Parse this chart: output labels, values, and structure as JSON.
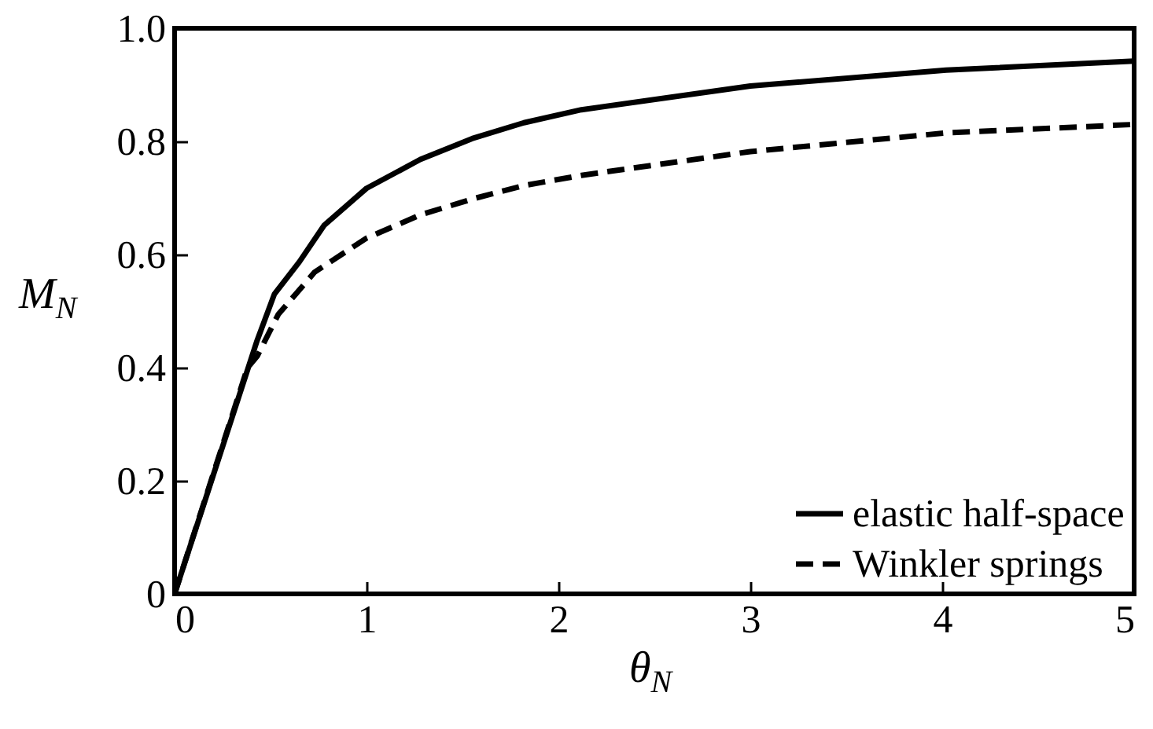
{
  "chart_data": {
    "type": "line",
    "xlabel": "θ$_{N}$",
    "ylabel": "M$_{N}$",
    "xlim": [
      0,
      5
    ],
    "ylim": [
      0,
      1
    ],
    "xticks": [
      0,
      1,
      2,
      3,
      4,
      5
    ],
    "yticks": [
      0,
      0.2,
      0.4,
      0.6,
      {
        "value": 0.8,
        "label": "0.8"
      },
      {
        "value": 1,
        "label": "1.0"
      }
    ],
    "legend": "bottom right",
    "series": [
      {
        "name": "elastic half-space",
        "color": "#000000",
        "line_style": "solid",
        "x": [
          0,
          0.43,
          0.52,
          0.65,
          0.78,
          1.0,
          1.28,
          1.55,
          1.82,
          2.12,
          3.0,
          4.02,
          5.0
        ],
        "values": [
          0,
          0.448,
          0.53,
          0.587,
          0.652,
          0.717,
          0.768,
          0.805,
          0.833,
          0.856,
          0.898,
          0.926,
          0.942
        ]
      },
      {
        "name": "Winkler springs",
        "color": "#000000",
        "line_style": "dashed",
        "x": [
          0,
          0.38,
          0.43,
          0.54,
          0.73,
          1.0,
          1.28,
          1.55,
          1.82,
          2.12,
          3.0,
          4.02,
          5.0
        ],
        "values": [
          0,
          0.4,
          0.42,
          0.494,
          0.569,
          0.629,
          0.67,
          0.698,
          0.722,
          0.74,
          0.782,
          0.815,
          0.83
        ]
      }
    ]
  }
}
